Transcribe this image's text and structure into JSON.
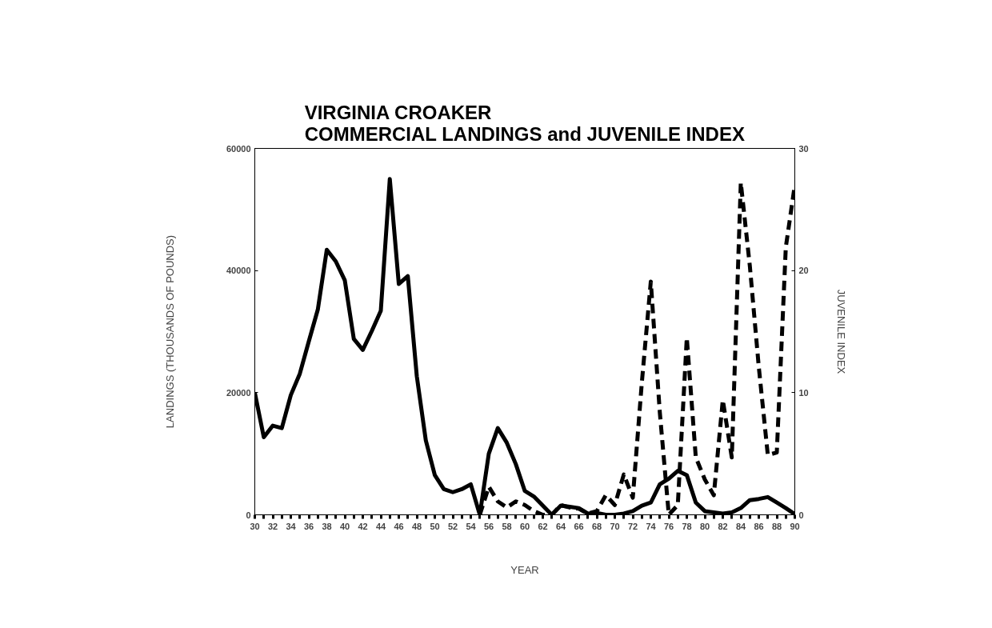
{
  "chart_data": {
    "type": "line",
    "title": "VIRGINIA CROAKER\nCOMMERCIAL LANDINGS and JUVENILE INDEX",
    "xlabel": "YEAR",
    "ylabel": "LANDINGS (THOUSANDS OF POUNDS)",
    "y2label": "JUVENILE INDEX",
    "xlim": [
      30,
      90
    ],
    "xticks": [
      30,
      {
        "value": 31,
        "label": null
      },
      32,
      {
        "value": 33,
        "label": null
      },
      34,
      {
        "value": 35,
        "label": null
      },
      36,
      {
        "value": 37,
        "label": null
      },
      38,
      {
        "value": 39,
        "label": null
      },
      40,
      {
        "value": 41,
        "label": null
      },
      42,
      {
        "value": 43,
        "label": null
      },
      44,
      {
        "value": 45,
        "label": null
      },
      46,
      {
        "value": 47,
        "label": null
      },
      48,
      {
        "value": 49,
        "label": null
      },
      50,
      {
        "value": 51,
        "label": null
      },
      52,
      {
        "value": 53,
        "label": null
      },
      54,
      {
        "value": 55,
        "label": null
      },
      56,
      {
        "value": 57,
        "label": null
      },
      58,
      {
        "value": 59,
        "label": null
      },
      60,
      {
        "value": 61,
        "label": null
      },
      62,
      {
        "value": 63,
        "label": null
      },
      64,
      {
        "value": 65,
        "label": null
      },
      66,
      {
        "value": 67,
        "label": null
      },
      68,
      {
        "value": 69,
        "label": null
      },
      70,
      {
        "value": 71,
        "label": null
      },
      72,
      {
        "value": 73,
        "label": null
      },
      74,
      {
        "value": 75,
        "label": null
      },
      76,
      {
        "value": 77,
        "label": null
      },
      78,
      {
        "value": 79,
        "label": null
      },
      80,
      {
        "value": 81,
        "label": null
      },
      82,
      {
        "value": 83,
        "label": null
      },
      84,
      {
        "value": 85,
        "label": null
      },
      86,
      {
        "value": 87,
        "label": null
      },
      88,
      {
        "value": 89,
        "label": null
      },
      90
    ],
    "ylim": [
      0,
      60000
    ],
    "yticks": [
      0,
      20000,
      40000,
      60000
    ],
    "y2lim": [
      0,
      30
    ],
    "y2ticks": [
      0,
      10,
      20,
      30
    ],
    "grid": false,
    "marker": "none",
    "series": [
      {
        "color": "#000000",
        "line_style": "solid",
        "x": [
          30,
          31,
          32,
          33,
          34,
          35,
          36,
          37,
          38,
          39,
          40,
          41,
          42,
          43,
          44,
          45,
          46,
          47,
          48,
          49,
          50,
          51,
          52,
          53,
          54,
          55,
          56,
          57,
          58,
          59,
          60,
          61,
          62,
          63,
          64,
          65,
          66,
          67,
          68,
          69,
          70,
          71,
          72,
          73,
          74,
          75,
          76,
          77,
          78,
          79,
          80,
          81,
          82,
          83,
          84,
          85,
          86,
          87,
          88,
          89,
          90
        ],
        "values": [
          20000,
          12700,
          14600,
          14200,
          19600,
          23100,
          28400,
          33600,
          43400,
          41500,
          38400,
          28800,
          27000,
          30100,
          33400,
          55000,
          37800,
          39100,
          22700,
          12200,
          6500,
          4200,
          3700,
          4200,
          5000,
          0,
          10000,
          14200,
          11800,
          8300,
          3900,
          3000,
          1500,
          0,
          1500,
          1300,
          1100,
          200,
          300,
          0,
          0,
          200,
          600,
          1500,
          2000,
          5000,
          5900,
          7200,
          6500,
          2000,
          600,
          400,
          200,
          400,
          1100,
          2400,
          2600,
          2900,
          2000,
          1100,
          100
        ]
      },
      {
        "color": "#000000",
        "line_style": "dashed",
        "axis": "y2",
        "x": [
          55,
          56,
          57,
          58,
          59,
          60,
          61,
          62,
          63,
          64,
          65,
          66,
          67,
          68,
          69,
          70,
          71,
          72,
          73,
          74,
          75,
          76,
          77,
          78,
          79,
          80,
          81,
          82,
          83,
          84,
          85,
          86,
          87,
          88,
          89,
          90
        ],
        "values": [
          0,
          2.3,
          1.1,
          0.6,
          1.1,
          0.8,
          0.3,
          0,
          0,
          0.8,
          0.6,
          0.5,
          0.1,
          0.3,
          1.6,
          0.8,
          3.3,
          1.4,
          10.8,
          19.1,
          8.4,
          0,
          0.8,
          14.5,
          4.7,
          2.9,
          1.6,
          9.4,
          4.7,
          27.2,
          20.4,
          12.1,
          4.9,
          5.1,
          21.9,
          27.0
        ]
      }
    ]
  }
}
